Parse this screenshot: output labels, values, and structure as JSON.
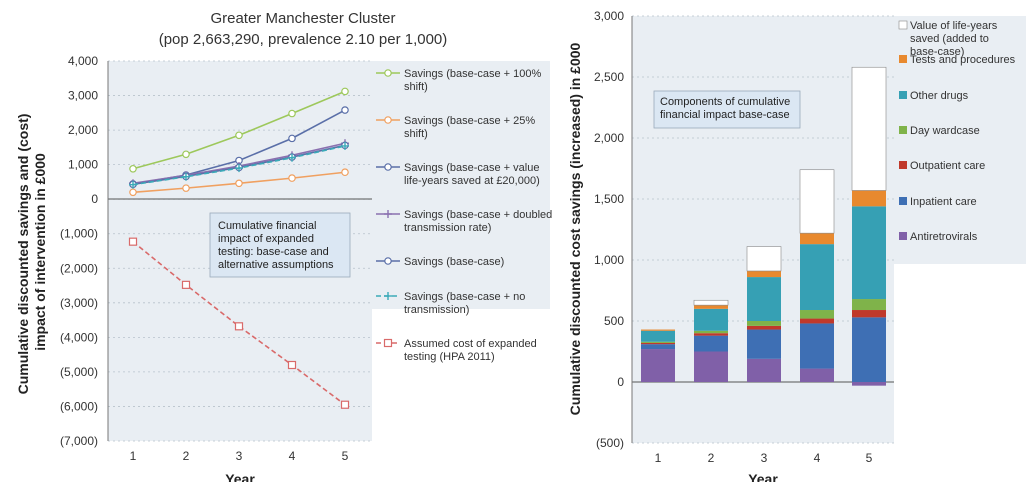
{
  "chart_data": [
    {
      "type": "line",
      "title": "Greater Manchester Cluster",
      "subtitle": "(pop 2,663,290, prevalence 2.10 per 1,000)",
      "xlabel": "Year",
      "ylabel": "Cumulative discounted savings and (cost) impact of intervention in £000",
      "x": [
        1,
        2,
        3,
        4,
        5
      ],
      "ylim": [
        -7000,
        4000
      ],
      "yticks": [
        4000,
        3000,
        2000,
        1000,
        0,
        -1000,
        -2000,
        -3000,
        -4000,
        -5000,
        -6000,
        -7000
      ],
      "ytick_labels": [
        "4,000",
        "3,000",
        "2,000",
        "1,000",
        "0",
        "(1,000)",
        "(2,000)",
        "(3,000)",
        "(4,000)",
        "(5,000)",
        "(6,000)",
        "(7,000)"
      ],
      "grid": true,
      "legend_position": "right",
      "annotation": "Cumulative financial impact of expanded testing: base-case and alternative assumptions",
      "series": [
        {
          "name": "Savings (base-case + 100% shift)",
          "values": [
            880,
            1300,
            1850,
            2480,
            3120
          ],
          "color": "#9dc85b",
          "marker": "circle",
          "dash": false
        },
        {
          "name": "Savings (base-case + 25% shift)",
          "values": [
            200,
            320,
            460,
            610,
            780
          ],
          "color": "#f0a060",
          "marker": "circle",
          "dash": false
        },
        {
          "name": "Savings (base-case + value life-years saved at £20,000)",
          "values": [
            440,
            700,
            1120,
            1760,
            2580
          ],
          "color": "#5a6fa8",
          "marker": "circle",
          "dash": false
        },
        {
          "name": "Savings (base-case + doubled transmission rate)",
          "values": [
            460,
            690,
            960,
            1270,
            1620
          ],
          "color": "#8a70b0",
          "marker": "plus",
          "dash": false
        },
        {
          "name": "Savings (base-case)",
          "values": [
            430,
            660,
            920,
            1220,
            1560
          ],
          "color": "#5a6fa8",
          "marker": "circle",
          "dash": false
        },
        {
          "name": "Savings (base-case + no transmission)",
          "values": [
            420,
            650,
            900,
            1200,
            1540
          ],
          "color": "#3aaab8",
          "marker": "plus",
          "dash": true
        },
        {
          "name": "Assumed cost of expanded testing (HPA 2011)",
          "values": [
            -1230,
            -2480,
            -3680,
            -4800,
            -5950
          ],
          "color": "#d96a6a",
          "marker": "square",
          "dash": true
        }
      ]
    },
    {
      "type": "bar",
      "stacked": true,
      "xlabel": "Year",
      "ylabel": "Cumulative discounted cost savings (increased) in £000",
      "categories": [
        "1",
        "2",
        "3",
        "4",
        "5"
      ],
      "ylim": [
        -500,
        3000
      ],
      "yticks": [
        3000,
        2500,
        2000,
        1500,
        1000,
        500,
        0,
        -500
      ],
      "ytick_labels": [
        "3,000",
        "2,500",
        "2,000",
        "1,500",
        "1,000",
        "500",
        "0",
        "(500)"
      ],
      "grid": true,
      "legend_position": "right",
      "annotation": "Components of cumulative financial impact base-case",
      "series": [
        {
          "name": "Antiretrovirals",
          "values": [
            270,
            250,
            190,
            110,
            -30
          ],
          "color": "#8060a8"
        },
        {
          "name": "Inpatient care",
          "values": [
            40,
            130,
            240,
            370,
            530
          ],
          "color": "#3e6fb4"
        },
        {
          "name": "Outpatient care",
          "values": [
            10,
            20,
            30,
            40,
            60
          ],
          "color": "#c0392b"
        },
        {
          "name": "Day wardcase",
          "values": [
            10,
            20,
            40,
            70,
            90
          ],
          "color": "#7fb34a"
        },
        {
          "name": "Other drugs",
          "values": [
            90,
            180,
            360,
            540,
            760
          ],
          "color": "#36a0b4"
        },
        {
          "name": "Tests and procedures",
          "values": [
            10,
            30,
            50,
            90,
            130
          ],
          "color": "#e8892e"
        },
        {
          "name": "Value of life-years saved (added to base-case)",
          "values": [
            0,
            40,
            200,
            520,
            1010
          ],
          "color": "#ffffff"
        }
      ]
    }
  ]
}
